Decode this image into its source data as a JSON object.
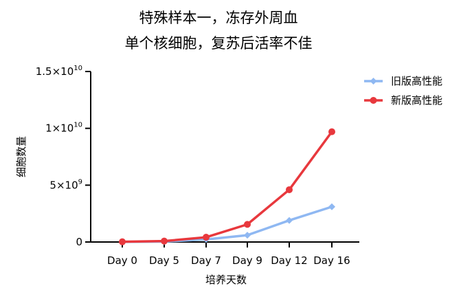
{
  "chart_data": {
    "type": "line",
    "title": [
      "特殊样本一，冻存外周血",
      "单个核细胞，复苏后活率不佳"
    ],
    "xlabel": "培养天数",
    "ylabel": "细胞数量",
    "categories": [
      "Day 0",
      "Day 5",
      "Day 7",
      "Day 9",
      "Day 12",
      "Day 16"
    ],
    "ylim": [
      0,
      15000000000
    ],
    "yticks": [
      {
        "value": 0,
        "label": "0"
      },
      {
        "value": 5000000000,
        "label": "5×10",
        "exp": "9"
      },
      {
        "value": 10000000000,
        "label": "1×10",
        "exp": "10"
      },
      {
        "value": 15000000000,
        "label": "1.5×10",
        "exp": "10"
      }
    ],
    "grid": false,
    "legend_position": "top-right",
    "series": [
      {
        "name": "旧版高性能",
        "color": "#8fb8f2",
        "marker": "diamond",
        "values": [
          10000000,
          40000000,
          230000000,
          600000000,
          1900000000,
          3100000000
        ]
      },
      {
        "name": "新版高性能",
        "color": "#e8383d",
        "marker": "circle",
        "values": [
          20000000,
          80000000,
          420000000,
          1550000000,
          4600000000,
          9700000000
        ]
      }
    ]
  }
}
